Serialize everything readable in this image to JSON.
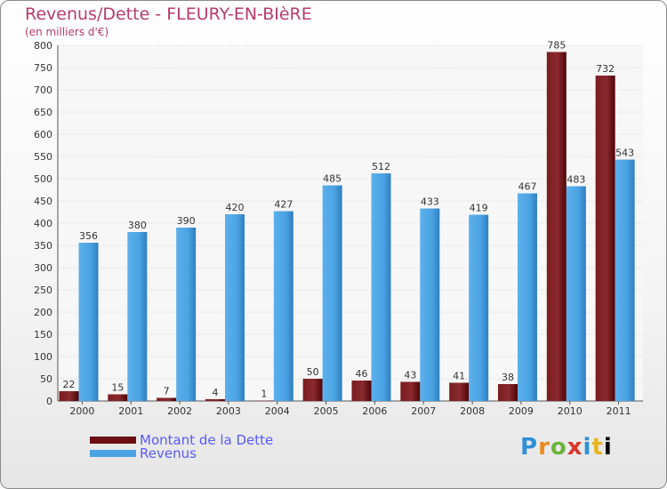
{
  "chart_data": {
    "type": "bar",
    "title": "Revenus/Dette - FLEURY-EN-BIèRE",
    "subtitle": "(en milliers d'€)",
    "categories": [
      "2000",
      "2001",
      "2002",
      "2003",
      "2004",
      "2005",
      "2006",
      "2007",
      "2008",
      "2009",
      "2010",
      "2011"
    ],
    "series": [
      {
        "name": "Montant de la Dette",
        "color": "#6b0f12",
        "values": [
          22,
          15,
          7,
          4,
          1,
          50,
          46,
          43,
          41,
          38,
          785,
          732
        ]
      },
      {
        "name": "Revenus",
        "color": "#4ba3e3",
        "values": [
          356,
          380,
          390,
          420,
          427,
          485,
          512,
          433,
          419,
          467,
          483,
          543
        ]
      }
    ],
    "ylim": [
      0,
      800
    ],
    "yticks": [
      0,
      50,
      100,
      150,
      200,
      250,
      300,
      350,
      400,
      450,
      500,
      550,
      600,
      650,
      700,
      750,
      800
    ],
    "grid": true,
    "legend": "bottom-left"
  },
  "logo": {
    "text": "Proxiti"
  }
}
